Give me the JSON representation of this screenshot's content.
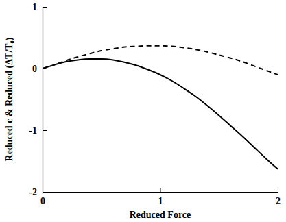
{
  "chart_data": {
    "type": "line",
    "x_label": "Reduced Force",
    "y_label": "Reduced c & Reduced (ΔT/T₀)",
    "x": [
      0,
      0.1,
      0.2,
      0.3,
      0.4,
      0.5,
      0.6,
      0.7,
      0.8,
      0.9,
      1.0,
      1.1,
      1.2,
      1.3,
      1.4,
      1.5,
      1.6,
      1.7,
      1.8,
      1.9,
      2.0
    ],
    "series": [
      {
        "color": "#000000",
        "line_style": "solid",
        "values": [
          0,
          0.06,
          0.11,
          0.14,
          0.155,
          0.155,
          0.14,
          0.1,
          0.05,
          -0.02,
          -0.1,
          -0.2,
          -0.32,
          -0.45,
          -0.6,
          -0.76,
          -0.93,
          -1.1,
          -1.28,
          -1.46,
          -1.63
        ]
      },
      {
        "color": "#000000",
        "line_style": "dashed",
        "values": [
          0,
          0.06,
          0.13,
          0.19,
          0.24,
          0.29,
          0.32,
          0.35,
          0.36,
          0.37,
          0.37,
          0.36,
          0.34,
          0.31,
          0.27,
          0.22,
          0.17,
          0.11,
          0.04,
          -0.03,
          -0.1
        ]
      }
    ],
    "xlim": [
      0,
      2
    ],
    "xticks": [
      0,
      1,
      2
    ],
    "ylim": [
      -2,
      1
    ],
    "yticks": [
      -2,
      -1,
      0,
      1
    ],
    "grid": false
  }
}
